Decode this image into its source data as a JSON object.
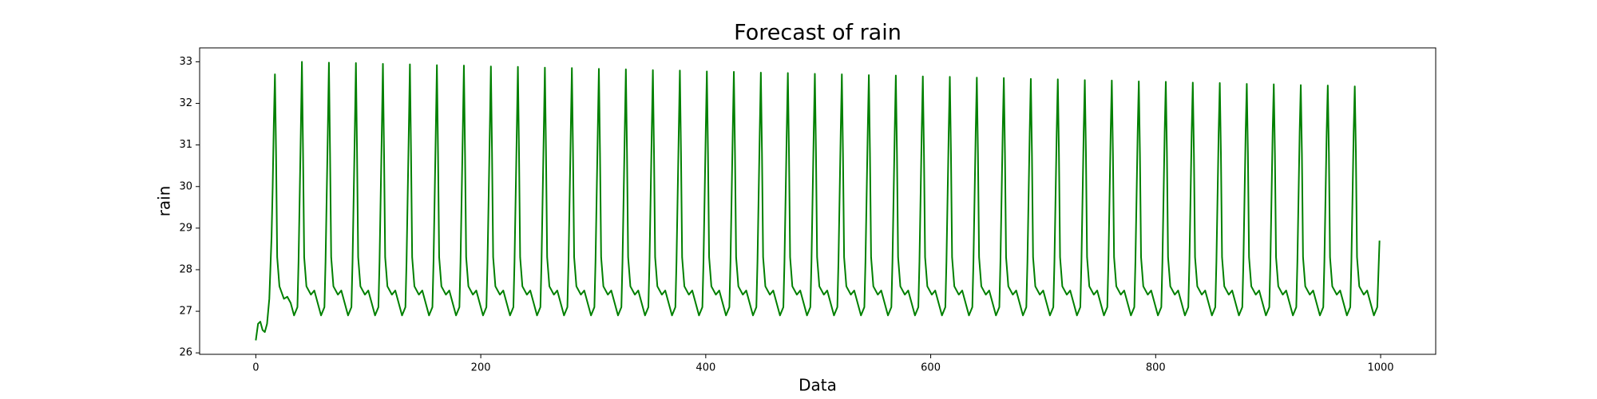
{
  "chart_data": {
    "type": "line",
    "title": "Forecast of rain",
    "xlabel": "Data",
    "ylabel": "rain",
    "color": "#008000",
    "x": [
      0,
      2,
      4,
      6,
      8,
      10,
      12,
      14,
      15,
      16,
      17,
      18,
      19,
      21,
      25,
      28,
      31,
      34,
      37,
      38,
      40,
      41,
      42,
      43,
      45,
      49,
      52,
      55,
      58,
      61,
      62,
      64,
      65,
      66,
      67,
      69,
      73,
      76,
      79,
      82,
      85,
      86,
      88,
      89,
      90,
      91,
      93,
      97,
      100,
      103,
      106,
      109,
      110,
      112,
      113,
      114,
      115,
      117,
      121,
      124,
      127,
      130,
      133,
      134,
      136,
      137,
      138,
      139,
      141,
      145,
      148,
      151,
      154,
      157,
      158,
      160,
      161,
      162,
      163,
      165,
      169,
      172,
      175,
      178,
      181,
      182,
      184,
      185,
      186,
      187,
      189,
      193,
      196,
      199,
      202,
      205,
      206,
      208,
      209,
      210,
      211,
      213,
      217,
      220,
      223,
      226,
      229,
      230,
      232,
      233,
      234,
      235,
      237,
      241,
      244,
      247,
      250,
      253,
      254,
      256,
      257,
      258,
      259,
      261,
      265,
      268,
      271,
      274,
      277,
      278,
      280,
      281,
      282,
      283,
      285,
      289,
      292,
      295,
      298,
      301,
      302,
      304,
      305,
      306,
      307,
      309,
      313,
      316,
      319,
      322,
      325,
      326,
      328,
      329,
      330,
      331,
      333,
      337,
      340,
      343,
      346,
      349,
      350,
      352,
      353,
      354,
      355,
      357,
      361,
      364,
      367,
      370,
      373,
      374,
      376,
      377,
      378,
      379,
      381,
      385,
      388,
      391,
      394,
      397,
      398,
      400,
      401,
      402,
      403,
      405,
      409,
      412,
      415,
      418,
      421,
      422,
      424,
      425,
      426,
      427,
      429,
      433,
      436,
      439,
      442,
      445,
      446,
      448,
      449,
      450,
      451,
      453,
      457,
      460,
      463,
      466,
      469,
      470,
      472,
      473,
      474,
      475,
      477,
      481,
      484,
      487,
      490,
      493,
      494,
      496,
      497,
      498,
      499,
      501,
      505,
      508,
      511,
      514,
      517,
      518,
      520,
      521,
      522,
      523,
      525,
      529,
      532,
      535,
      538,
      541,
      542,
      544,
      545,
      546,
      547,
      549,
      553,
      556,
      559,
      562,
      565,
      566,
      568,
      569,
      570,
      571,
      573,
      577,
      580,
      583,
      586,
      589,
      590,
      592,
      593,
      594,
      595,
      597,
      601,
      604,
      607,
      610,
      613,
      614,
      616,
      617,
      618,
      619,
      621,
      625,
      628,
      631,
      634,
      637,
      638,
      640,
      641,
      642,
      643,
      645,
      649,
      652,
      655,
      658,
      661,
      662,
      664,
      665,
      666,
      667,
      669,
      673,
      676,
      679,
      682,
      685,
      686,
      688,
      689,
      690,
      691,
      693,
      697,
      700,
      703,
      706,
      709,
      710,
      712,
      713,
      714,
      715,
      717,
      721,
      724,
      727,
      730,
      733,
      734,
      736,
      737,
      738,
      739,
      741,
      745,
      748,
      751,
      754,
      757,
      758,
      760,
      761,
      762,
      763,
      765,
      769,
      772,
      775,
      778,
      781,
      782,
      784,
      785,
      786,
      787,
      789,
      793,
      796,
      799,
      802,
      805,
      806,
      808,
      809,
      810,
      811,
      813,
      817,
      820,
      823,
      826,
      829,
      830,
      832,
      833,
      834,
      835,
      837,
      841,
      844,
      847,
      850,
      853,
      854,
      856,
      857,
      858,
      859,
      861,
      865,
      868,
      871,
      874,
      877,
      878,
      880,
      881,
      882,
      883,
      885,
      889,
      892,
      895,
      898,
      901,
      902,
      904,
      905,
      906,
      907,
      909,
      913,
      916,
      919,
      922,
      925,
      926,
      928,
      929,
      930,
      931,
      933,
      937,
      940,
      943,
      946,
      949,
      950,
      952,
      953,
      954,
      955,
      957,
      961,
      964,
      967,
      970,
      973,
      974,
      976,
      977,
      978,
      979,
      981,
      985,
      988,
      991,
      994,
      997,
      999
    ],
    "values": [
      26.3,
      26.7,
      26.75,
      26.55,
      26.5,
      26.7,
      27.3,
      28.8,
      30.0,
      31.5,
      32.7,
      30.8,
      28.3,
      27.6,
      27.3,
      27.35,
      27.2,
      26.9,
      27.1,
      28.2,
      31.3,
      33.0,
      30.8,
      28.3,
      27.6,
      27.4,
      27.5,
      27.2,
      26.9,
      27.1,
      28.2,
      31.3,
      32.98,
      30.8,
      28.3,
      27.6,
      27.4,
      27.5,
      27.2,
      26.9,
      27.1,
      28.2,
      31.3,
      32.97,
      30.8,
      28.3,
      27.6,
      27.4,
      27.5,
      27.2,
      26.9,
      27.1,
      28.2,
      31.3,
      32.95,
      30.8,
      28.3,
      27.6,
      27.4,
      27.5,
      27.2,
      26.9,
      27.1,
      28.2,
      31.3,
      32.94,
      30.8,
      28.3,
      27.6,
      27.4,
      27.5,
      27.2,
      26.9,
      27.1,
      28.2,
      31.3,
      32.92,
      30.8,
      28.3,
      27.6,
      27.4,
      27.5,
      27.2,
      26.9,
      27.1,
      28.2,
      31.3,
      32.91,
      30.8,
      28.3,
      27.6,
      27.4,
      27.5,
      27.2,
      26.9,
      27.1,
      28.2,
      31.3,
      32.89,
      30.8,
      28.3,
      27.6,
      27.4,
      27.5,
      27.2,
      26.9,
      27.1,
      28.2,
      31.3,
      32.88,
      30.8,
      28.3,
      27.6,
      27.4,
      27.5,
      27.2,
      26.9,
      27.1,
      28.2,
      31.3,
      32.86,
      30.8,
      28.3,
      27.6,
      27.4,
      27.5,
      27.2,
      26.9,
      27.1,
      28.2,
      31.3,
      32.85,
      30.8,
      28.3,
      27.6,
      27.4,
      27.5,
      27.2,
      26.9,
      27.1,
      28.2,
      31.3,
      32.83,
      30.8,
      28.3,
      27.6,
      27.4,
      27.5,
      27.2,
      26.9,
      27.1,
      28.2,
      31.3,
      32.82,
      30.8,
      28.3,
      27.6,
      27.4,
      27.5,
      27.2,
      26.9,
      27.1,
      28.2,
      31.3,
      32.8,
      30.8,
      28.3,
      27.6,
      27.4,
      27.5,
      27.2,
      26.9,
      27.1,
      28.2,
      31.3,
      32.79,
      30.8,
      28.3,
      27.6,
      27.4,
      27.5,
      27.2,
      26.9,
      27.1,
      28.2,
      31.3,
      32.77,
      30.8,
      28.3,
      27.6,
      27.4,
      27.5,
      27.2,
      26.9,
      27.1,
      28.2,
      31.3,
      32.76,
      30.8,
      28.3,
      27.6,
      27.4,
      27.5,
      27.2,
      26.9,
      27.1,
      28.2,
      31.3,
      32.74,
      30.8,
      28.3,
      27.6,
      27.4,
      27.5,
      27.2,
      26.9,
      27.1,
      28.2,
      31.3,
      32.73,
      30.8,
      28.3,
      27.6,
      27.4,
      27.5,
      27.2,
      26.9,
      27.1,
      28.2,
      31.3,
      32.71,
      30.8,
      28.3,
      27.6,
      27.4,
      27.5,
      27.2,
      26.9,
      27.1,
      28.2,
      31.3,
      32.7,
      30.8,
      28.3,
      27.6,
      27.4,
      27.5,
      27.2,
      26.9,
      27.1,
      28.2,
      31.3,
      32.68,
      30.8,
      28.3,
      27.6,
      27.4,
      27.5,
      27.2,
      26.9,
      27.1,
      28.2,
      31.3,
      32.67,
      30.8,
      28.3,
      27.6,
      27.4,
      27.5,
      27.2,
      26.9,
      27.1,
      28.2,
      31.3,
      32.65,
      30.8,
      28.3,
      27.6,
      27.4,
      27.5,
      27.2,
      26.9,
      27.1,
      28.2,
      31.3,
      32.64,
      30.8,
      28.3,
      27.6,
      27.4,
      27.5,
      27.2,
      26.9,
      27.1,
      28.2,
      31.3,
      32.62,
      30.8,
      28.3,
      27.6,
      27.4,
      27.5,
      27.2,
      26.9,
      27.1,
      28.2,
      31.3,
      32.61,
      30.8,
      28.3,
      27.6,
      27.4,
      27.5,
      27.2,
      26.9,
      27.1,
      28.2,
      31.3,
      32.59,
      30.8,
      28.3,
      27.6,
      27.4,
      27.5,
      27.2,
      26.9,
      27.1,
      28.2,
      31.3,
      32.58,
      30.8,
      28.3,
      27.6,
      27.4,
      27.5,
      27.2,
      26.9,
      27.1,
      28.2,
      31.3,
      32.56,
      30.8,
      28.3,
      27.6,
      27.4,
      27.5,
      27.2,
      26.9,
      27.1,
      28.2,
      31.3,
      32.55,
      30.8,
      28.3,
      27.6,
      27.4,
      27.5,
      27.2,
      26.9,
      27.1,
      28.2,
      31.3,
      32.53,
      30.8,
      28.3,
      27.6,
      27.4,
      27.5,
      27.2,
      26.9,
      27.1,
      28.2,
      31.3,
      32.52,
      30.8,
      28.3,
      27.6,
      27.4,
      27.5,
      27.2,
      26.9,
      27.1,
      28.2,
      31.3,
      32.5,
      30.8,
      28.3,
      27.6,
      27.4,
      27.5,
      27.2,
      26.9,
      27.1,
      28.2,
      31.3,
      32.49,
      30.8,
      28.3,
      27.6,
      27.4,
      27.5,
      27.2,
      26.9,
      27.1,
      28.2,
      31.3,
      32.47,
      30.8,
      28.3,
      27.6,
      27.4,
      27.5,
      27.2,
      26.9,
      27.1,
      28.2,
      31.3,
      32.46,
      30.8,
      28.3,
      27.6,
      27.4,
      27.5,
      27.2,
      26.9,
      27.1,
      28.2,
      31.3,
      32.44,
      30.8,
      28.3,
      27.6,
      27.4,
      27.5,
      27.2,
      26.9,
      27.1,
      28.2,
      31.3,
      32.43,
      30.8,
      28.3,
      27.6,
      27.4,
      27.5,
      27.2,
      26.9,
      27.1,
      28.2,
      31.3,
      32.41,
      30.8,
      28.3,
      27.6,
      27.4,
      27.5,
      27.2,
      26.9,
      27.1,
      28.7
    ],
    "xlim": [
      -49.95,
      1048.95
    ],
    "xticks": [
      0,
      200,
      400,
      600,
      800,
      1000
    ],
    "ylim": [
      25.965,
      33.335
    ],
    "yticks": [
      26,
      27,
      28,
      29,
      30,
      31,
      32,
      33
    ]
  }
}
